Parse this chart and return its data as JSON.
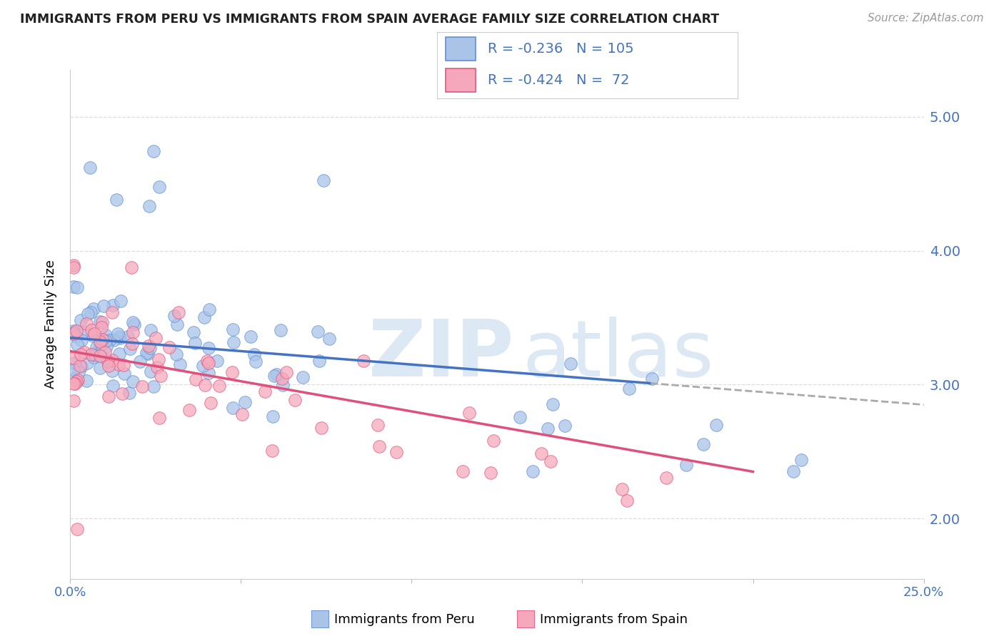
{
  "title": "IMMIGRANTS FROM PERU VS IMMIGRANTS FROM SPAIN AVERAGE FAMILY SIZE CORRELATION CHART",
  "source": "Source: ZipAtlas.com",
  "ylabel": "Average Family Size",
  "yticks": [
    2.0,
    3.0,
    4.0,
    5.0
  ],
  "xlim": [
    0.0,
    0.25
  ],
  "ylim": [
    1.55,
    5.35
  ],
  "legend1_label": "Immigrants from Peru",
  "legend2_label": "Immigrants from Spain",
  "legend1_R": "-0.236",
  "legend1_N": "105",
  "legend2_R": "-0.424",
  "legend2_N": " 72",
  "color_peru_fill": "#aac4e8",
  "color_peru_edge": "#6090d8",
  "color_spain_fill": "#f5a8bc",
  "color_spain_edge": "#e05880",
  "color_line_peru": "#4472c4",
  "color_line_spain": "#e0507a",
  "color_dash": "#aaaaaa",
  "color_text_blue": "#4472c4",
  "color_grid": "#dddddd",
  "color_title": "#222222",
  "color_source": "#999999",
  "color_watermark": "#dde8f5",
  "seed": 1234
}
